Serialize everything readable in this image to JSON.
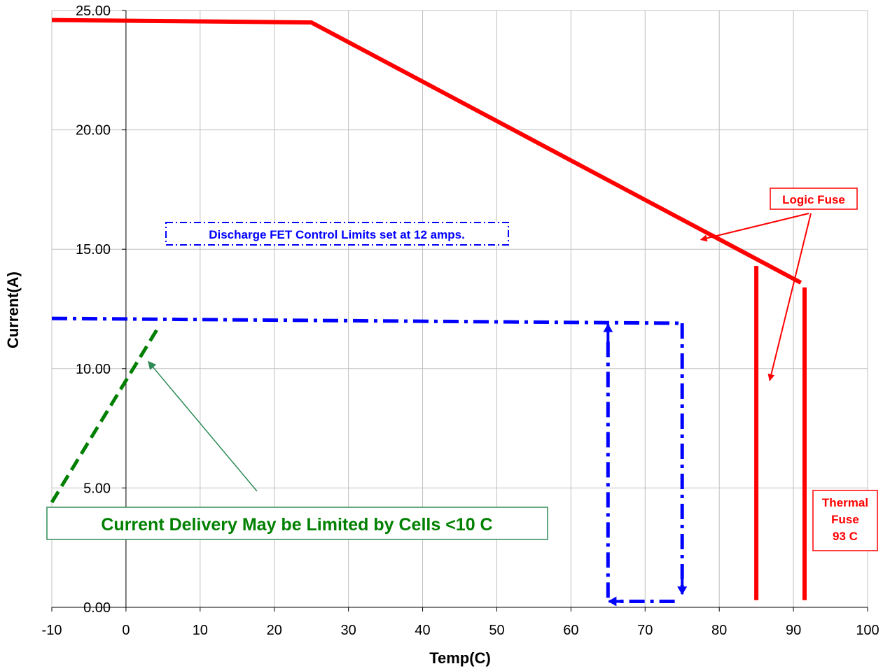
{
  "chart_data": {
    "type": "line",
    "title": "",
    "xlabel": "Temp(C)",
    "ylabel": "Current(A)",
    "xlim": [
      -10,
      100
    ],
    "ylim": [
      0,
      25
    ],
    "x_ticks": [
      -10,
      0,
      10,
      20,
      30,
      40,
      50,
      60,
      70,
      80,
      90,
      100
    ],
    "x_tick_labels": [
      "-10",
      "0",
      "10",
      "20",
      "30",
      "40",
      "50",
      "60",
      "70",
      "80",
      "90",
      "100"
    ],
    "y_ticks": [
      0,
      5,
      10,
      15,
      20,
      25
    ],
    "y_tick_labels": [
      "0.00",
      "5.00",
      "10.00",
      "15.00",
      "20.00",
      "25.00"
    ],
    "grid": true,
    "legend": "none",
    "series": [
      {
        "key": "logic_fuse",
        "color": "#ff0000",
        "style": "solid",
        "points": [
          [
            -10,
            24.6
          ],
          [
            25,
            24.5
          ],
          [
            91,
            13.6
          ]
        ]
      },
      {
        "key": "thermal_fuse_a",
        "color": "#ff0000",
        "style": "solid",
        "points": [
          [
            85,
            14.3
          ],
          [
            85,
            0.3
          ]
        ]
      },
      {
        "key": "thermal_fuse_b",
        "color": "#ff0000",
        "style": "solid",
        "points": [
          [
            91.5,
            13.4
          ],
          [
            91.5,
            0.3
          ]
        ]
      },
      {
        "key": "fet_limit",
        "color": "#0000ff",
        "style": "dash-dot",
        "points": [
          [
            -10,
            12.1
          ],
          [
            75,
            11.9
          ]
        ]
      },
      {
        "key": "fet_limit_drop",
        "color": "#0000ff",
        "style": "dash-dot",
        "points": [
          [
            75,
            11.9
          ],
          [
            75,
            0.6
          ]
        ]
      },
      {
        "key": "fet_limit_return",
        "color": "#0000ff",
        "style": "dash-dot",
        "points": [
          [
            74,
            0.25
          ],
          [
            66,
            0.25
          ]
        ]
      },
      {
        "key": "fet_limit_rise",
        "color": "#0000ff",
        "style": "dash-dot",
        "points": [
          [
            65,
            0.4
          ],
          [
            65,
            11.3
          ]
        ]
      },
      {
        "key": "cell_limit",
        "color": "#007f00",
        "style": "dashed",
        "points": [
          [
            -10,
            4.4
          ],
          [
            4.5,
            11.8
          ]
        ]
      }
    ],
    "annotations": [
      {
        "key": "logic_fuse",
        "text": "Logic Fuse",
        "color": "#ff0000",
        "box": "solid"
      },
      {
        "key": "thermal_fuse",
        "lines": [
          "Thermal",
          "Fuse",
          "93  C"
        ],
        "color": "#ff0000",
        "box": "solid"
      },
      {
        "key": "fet_control",
        "text": "Discharge FET Control Limits set at 12 amps.",
        "color": "#0000ff",
        "box": "dash-dot"
      },
      {
        "key": "cell_delivery",
        "text": "Current Delivery May be Limited by Cells <10  C",
        "color": "#007f00",
        "box": "solid"
      }
    ]
  }
}
